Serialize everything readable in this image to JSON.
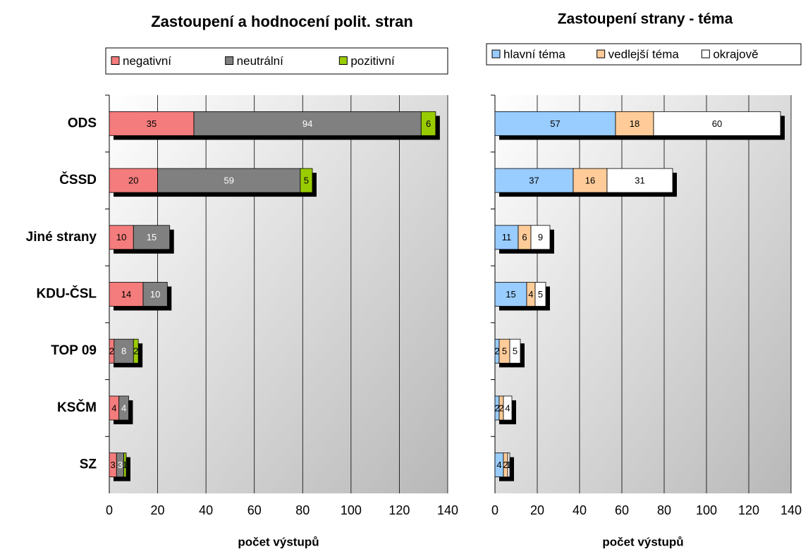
{
  "chart_data": [
    {
      "type": "stacked-barh",
      "title": "Zastoupení a hodnocení polit. stran",
      "xlabel": "počet výstupů",
      "categories": [
        "ODS",
        "ČSSD",
        "Jiné strany",
        "KDU-ČSL",
        "TOP 09",
        "KSČM",
        "SZ"
      ],
      "series": [
        {
          "name": "negativní",
          "color": "#f47c7c",
          "values": [
            35,
            20,
            10,
            14,
            2,
            4,
            3
          ]
        },
        {
          "name": "neutrální",
          "color": "#808080",
          "values": [
            94,
            59,
            15,
            10,
            8,
            4,
            3
          ]
        },
        {
          "name": "pozitivní",
          "color": "#99cc00",
          "values": [
            6,
            5,
            null,
            null,
            2,
            null,
            1
          ]
        }
      ],
      "xlim": [
        0,
        140
      ],
      "xticks": [
        0,
        20,
        40,
        60,
        80,
        100,
        120,
        140
      ],
      "grid": true,
      "legend": "top"
    },
    {
      "type": "stacked-barh",
      "title": "Zastoupení strany - téma",
      "xlabel": "počet výstupů",
      "series": [
        {
          "name": "hlavní téma",
          "color": "#99ccff",
          "values": [
            57,
            37,
            11,
            15,
            2,
            2,
            4
          ]
        },
        {
          "name": "vedlejší téma",
          "color": "#ffcc99",
          "values": [
            18,
            16,
            6,
            4,
            5,
            2,
            2
          ]
        },
        {
          "name": "okrajově",
          "color": "#ffffff",
          "values": [
            60,
            31,
            9,
            5,
            5,
            4,
            1
          ]
        }
      ],
      "xlim": [
        0,
        140
      ],
      "xticks": [
        0,
        20,
        40,
        60,
        80,
        100,
        120,
        140
      ],
      "grid": true,
      "legend": "top"
    }
  ]
}
